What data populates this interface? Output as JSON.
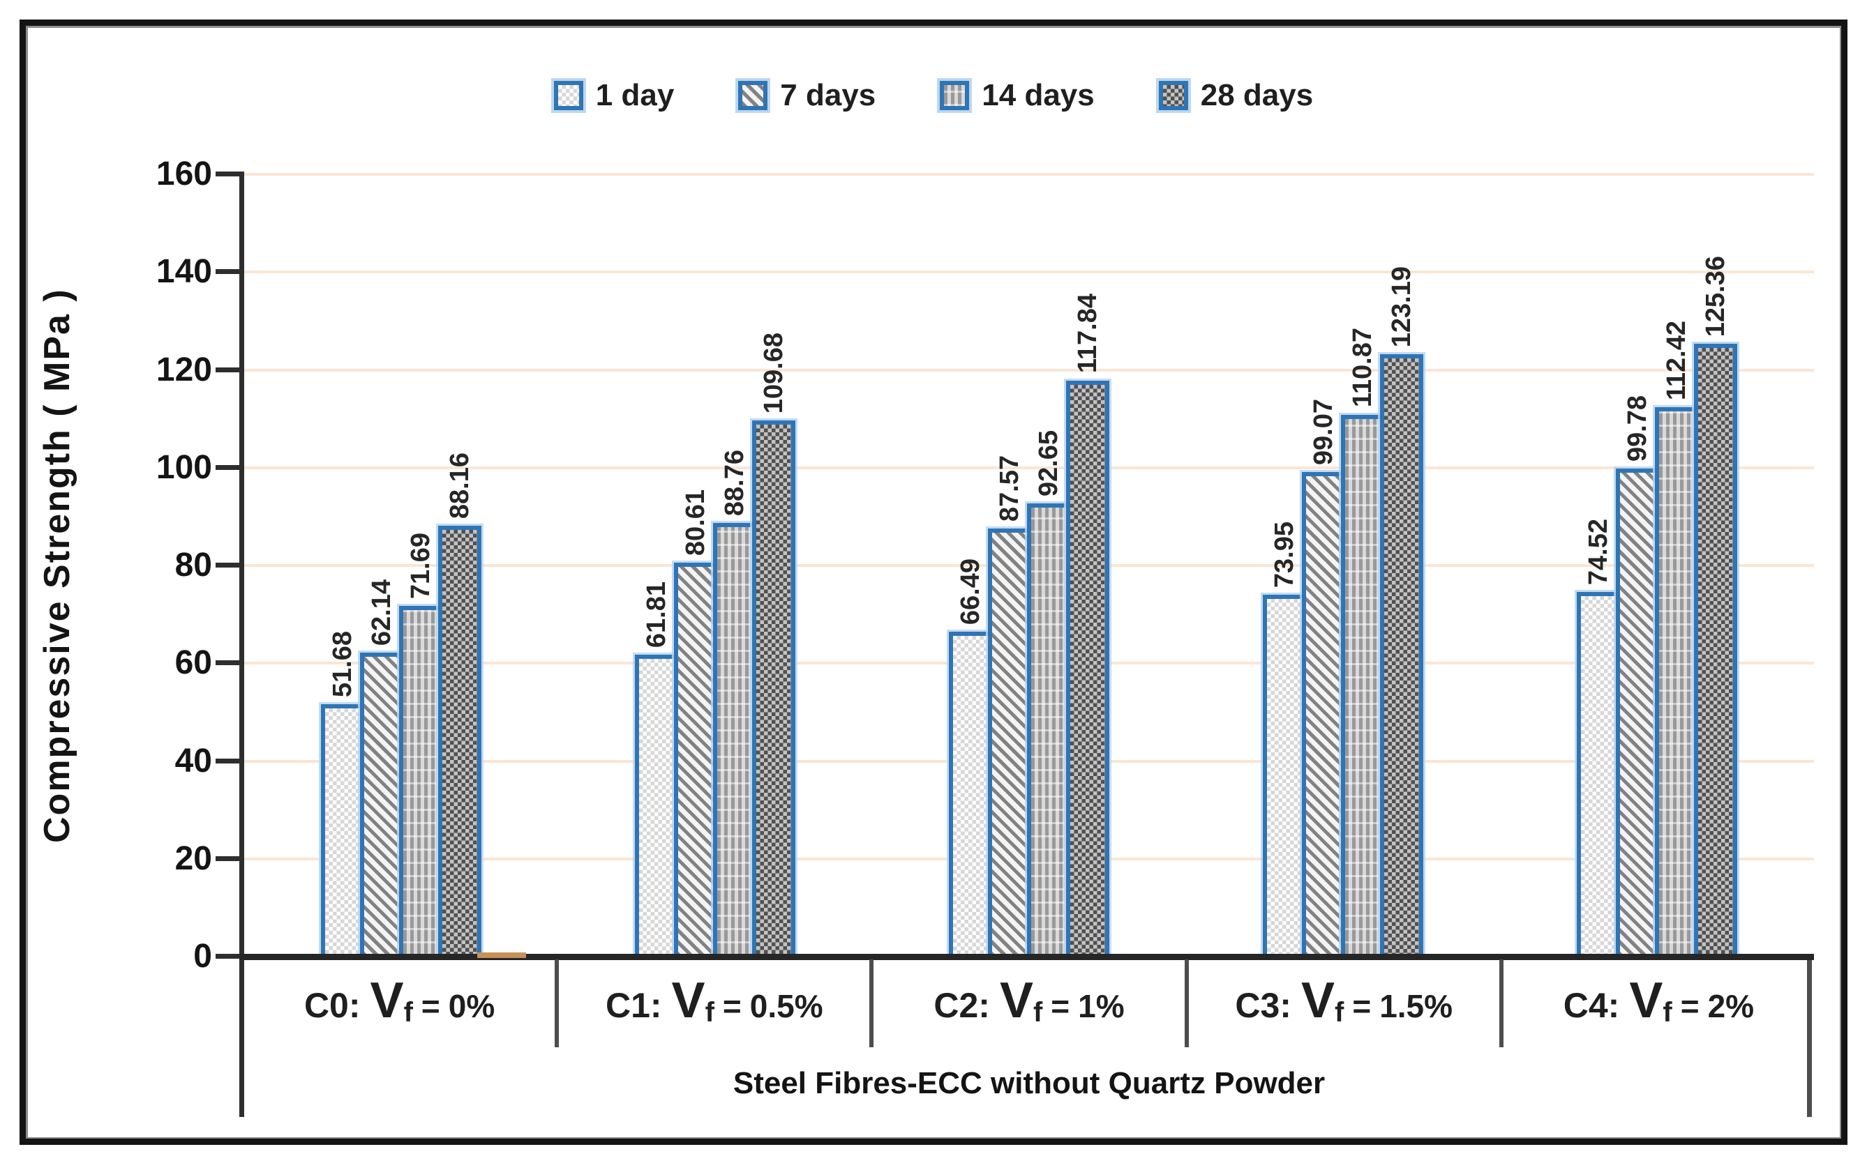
{
  "chart_data": {
    "type": "bar",
    "title": "",
    "ylabel": "Compressive Strength ( MPa )",
    "xlabel": "Steel Fibres-ECC without Quartz Powder",
    "ylim": [
      0,
      160
    ],
    "yticks": [
      0,
      20,
      40,
      60,
      80,
      100,
      120,
      140,
      160
    ],
    "grid": true,
    "legend_position": "top",
    "data_label_decimals": 2,
    "data_labels_rotated": true,
    "categories": [
      {
        "prefix": "C0:",
        "symbol": "V",
        "subscript": "f",
        "equals": "=",
        "value": "0%",
        "text": "C0: Vf = 0%"
      },
      {
        "prefix": "C1:",
        "symbol": "V",
        "subscript": "f",
        "equals": "=",
        "value": "0.5%",
        "text": "C1: Vf = 0.5%"
      },
      {
        "prefix": "C2:",
        "symbol": "V",
        "subscript": "f",
        "equals": "=",
        "value": "1%",
        "text": "C2: Vf = 1%"
      },
      {
        "prefix": "C3:",
        "symbol": "V",
        "subscript": "f",
        "equals": "=",
        "value": "1.5%",
        "text": "C3: Vf = 1.5%"
      },
      {
        "prefix": "C4:",
        "symbol": "V",
        "subscript": "f",
        "equals": "=",
        "value": "2%",
        "text": "C4: Vf = 2%"
      }
    ],
    "series": [
      {
        "name": "1 day",
        "pattern": "light-dotted-checker",
        "values": [
          51.68,
          61.81,
          66.49,
          73.95,
          74.52
        ]
      },
      {
        "name": "7 days",
        "pattern": "diagonal-hatch",
        "values": [
          62.14,
          80.61,
          87.57,
          99.07,
          99.78
        ]
      },
      {
        "name": "14 days",
        "pattern": "vertical-dashed-stripes",
        "values": [
          71.69,
          88.76,
          92.65,
          110.87,
          112.42
        ]
      },
      {
        "name": "28 days",
        "pattern": "dark-dotted-checker",
        "values": [
          88.16,
          109.68,
          117.84,
          123.19,
          125.36
        ]
      }
    ]
  },
  "colors": {
    "background": "#FFFFFF",
    "frame": "#141414",
    "bar_border": "#2E75B6",
    "bar_border_halo": "#BDD7EE",
    "gridline": "#FBE5D3",
    "axis": "#2E2E2E",
    "label_divider": "#4D4D4D",
    "text": "#1F1F1F",
    "baseline_mark": "#C79158"
  }
}
